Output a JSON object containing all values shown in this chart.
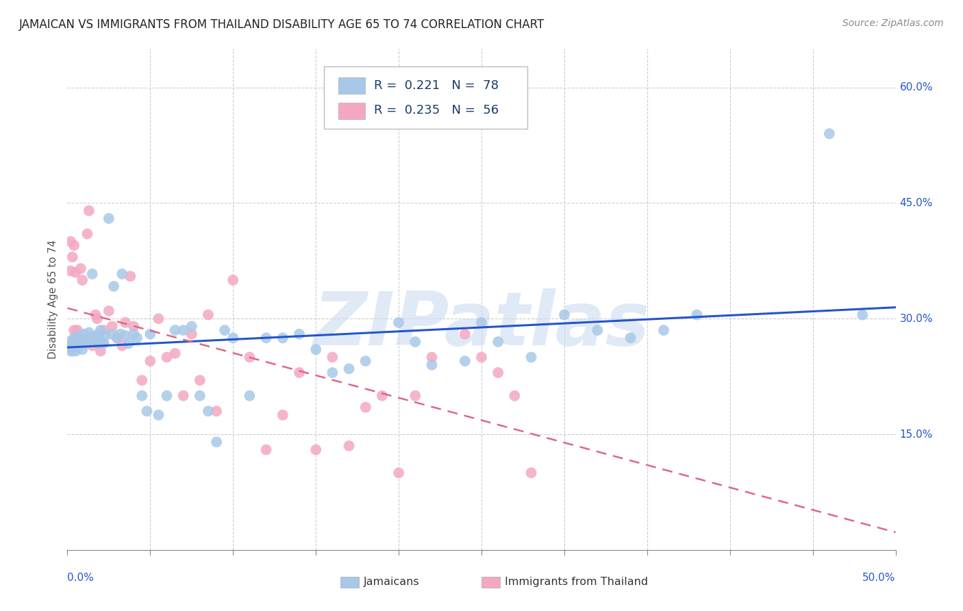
{
  "title": "JAMAICAN VS IMMIGRANTS FROM THAILAND DISABILITY AGE 65 TO 74 CORRELATION CHART",
  "source": "Source: ZipAtlas.com",
  "ylabel": "Disability Age 65 to 74",
  "xlim": [
    0.0,
    0.5
  ],
  "ylim": [
    0.0,
    0.65
  ],
  "xticks_major": [
    0.0,
    0.5
  ],
  "xtick_major_labels": [
    "0.0%",
    "50.0%"
  ],
  "xticks_minor": [
    0.05,
    0.1,
    0.15,
    0.2,
    0.25,
    0.3,
    0.35,
    0.4,
    0.45
  ],
  "yticks": [
    0.0,
    0.15,
    0.3,
    0.45,
    0.6
  ],
  "yticklabels": [
    "",
    "15.0%",
    "30.0%",
    "45.0%",
    "60.0%"
  ],
  "blue_color": "#a8c8e8",
  "pink_color": "#f4a8c0",
  "blue_line_color": "#2255cc",
  "pink_line_color": "#dd6688",
  "pink_line_dash": [
    6,
    4
  ],
  "legend_text_color": "#1a3a6b",
  "R_blue": 0.221,
  "N_blue": 78,
  "R_pink": 0.235,
  "N_pink": 56,
  "watermark": "ZIPatlas",
  "legend_label_blue": "Jamaicans",
  "legend_label_pink": "Immigrants from Thailand",
  "blue_x": [
    0.001,
    0.002,
    0.002,
    0.003,
    0.003,
    0.004,
    0.004,
    0.005,
    0.005,
    0.005,
    0.006,
    0.006,
    0.007,
    0.007,
    0.008,
    0.008,
    0.009,
    0.009,
    0.01,
    0.01,
    0.011,
    0.012,
    0.013,
    0.014,
    0.015,
    0.016,
    0.017,
    0.018,
    0.019,
    0.02,
    0.021,
    0.022,
    0.023,
    0.025,
    0.027,
    0.028,
    0.03,
    0.032,
    0.033,
    0.035,
    0.037,
    0.04,
    0.042,
    0.045,
    0.048,
    0.05,
    0.055,
    0.06,
    0.065,
    0.07,
    0.075,
    0.08,
    0.085,
    0.09,
    0.095,
    0.1,
    0.11,
    0.12,
    0.13,
    0.14,
    0.15,
    0.16,
    0.17,
    0.18,
    0.2,
    0.21,
    0.22,
    0.24,
    0.25,
    0.26,
    0.28,
    0.3,
    0.32,
    0.34,
    0.36,
    0.38,
    0.46,
    0.48
  ],
  "blue_y": [
    0.27,
    0.265,
    0.258,
    0.268,
    0.262,
    0.275,
    0.26,
    0.272,
    0.265,
    0.258,
    0.27,
    0.263,
    0.278,
    0.265,
    0.272,
    0.268,
    0.275,
    0.26,
    0.28,
    0.268,
    0.275,
    0.278,
    0.282,
    0.27,
    0.358,
    0.275,
    0.278,
    0.268,
    0.28,
    0.285,
    0.27,
    0.268,
    0.278,
    0.43,
    0.28,
    0.342,
    0.275,
    0.28,
    0.358,
    0.278,
    0.268,
    0.28,
    0.275,
    0.2,
    0.18,
    0.28,
    0.175,
    0.2,
    0.285,
    0.285,
    0.29,
    0.2,
    0.18,
    0.14,
    0.285,
    0.275,
    0.2,
    0.275,
    0.275,
    0.28,
    0.26,
    0.23,
    0.235,
    0.245,
    0.295,
    0.27,
    0.24,
    0.245,
    0.295,
    0.27,
    0.25,
    0.305,
    0.285,
    0.275,
    0.285,
    0.305,
    0.54,
    0.305
  ],
  "pink_x": [
    0.001,
    0.002,
    0.002,
    0.003,
    0.003,
    0.004,
    0.004,
    0.005,
    0.005,
    0.006,
    0.007,
    0.008,
    0.009,
    0.01,
    0.012,
    0.013,
    0.015,
    0.017,
    0.018,
    0.02,
    0.022,
    0.025,
    0.027,
    0.03,
    0.033,
    0.035,
    0.038,
    0.04,
    0.045,
    0.05,
    0.055,
    0.06,
    0.065,
    0.07,
    0.075,
    0.08,
    0.085,
    0.09,
    0.1,
    0.11,
    0.12,
    0.13,
    0.14,
    0.15,
    0.16,
    0.17,
    0.18,
    0.19,
    0.2,
    0.21,
    0.22,
    0.24,
    0.25,
    0.26,
    0.27,
    0.28
  ],
  "pink_y": [
    0.265,
    0.4,
    0.362,
    0.38,
    0.258,
    0.285,
    0.395,
    0.36,
    0.275,
    0.285,
    0.275,
    0.365,
    0.35,
    0.268,
    0.41,
    0.44,
    0.265,
    0.305,
    0.3,
    0.258,
    0.285,
    0.31,
    0.29,
    0.275,
    0.265,
    0.295,
    0.355,
    0.29,
    0.22,
    0.245,
    0.3,
    0.25,
    0.255,
    0.2,
    0.28,
    0.22,
    0.305,
    0.18,
    0.35,
    0.25,
    0.13,
    0.175,
    0.23,
    0.13,
    0.25,
    0.135,
    0.185,
    0.2,
    0.1,
    0.2,
    0.25,
    0.28,
    0.25,
    0.23,
    0.2,
    0.1
  ]
}
